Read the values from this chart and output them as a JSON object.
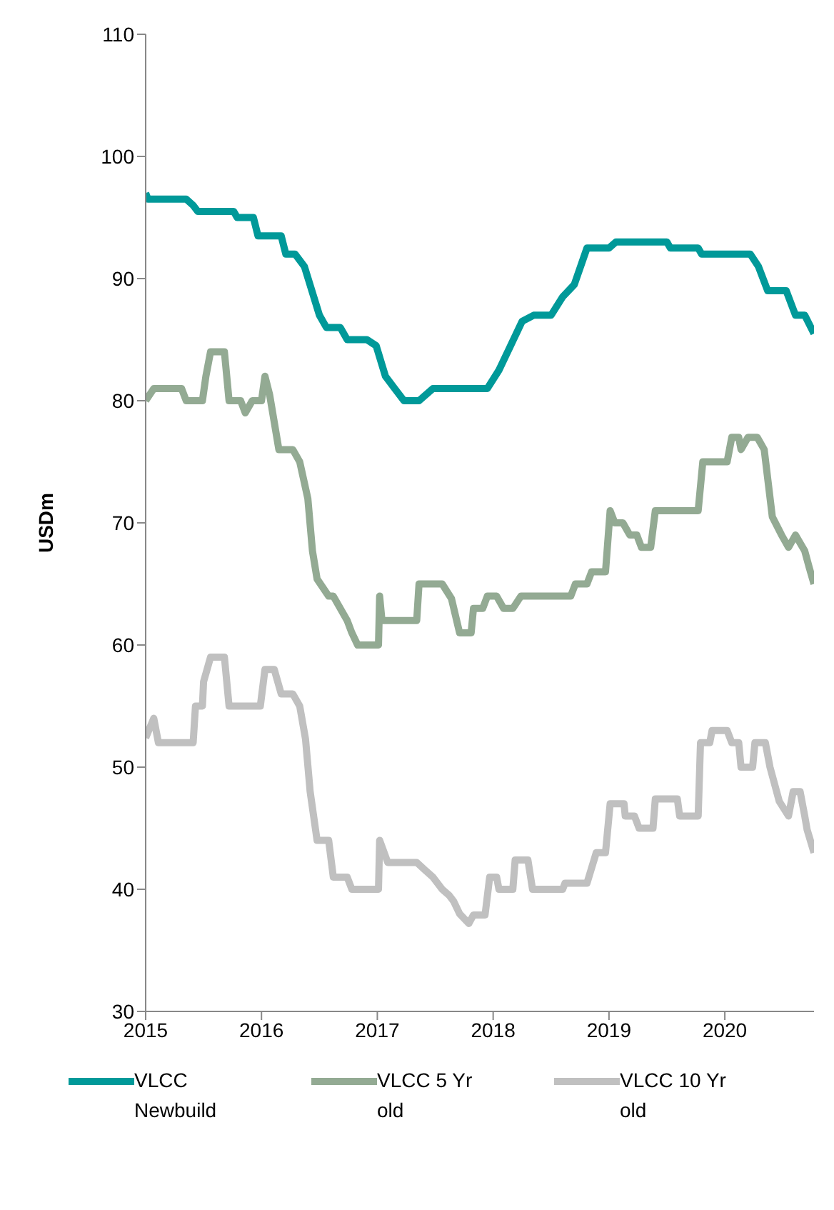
{
  "chart_data": {
    "type": "line",
    "ylabel": "USDm",
    "xlim": [
      2015,
      2020.77
    ],
    "xticks": [
      2015,
      2016,
      2017,
      2018,
      2019,
      2020
    ],
    "ylim": [
      30,
      110
    ],
    "yticks": [
      30,
      40,
      50,
      60,
      70,
      80,
      90,
      100,
      110
    ],
    "legend": "bottom",
    "marker": "none",
    "line_style": "solid",
    "series": [
      {
        "name": "VLCC Newbuild",
        "color": "#009999",
        "x": [
          2015.0,
          2015.02,
          2015.35,
          2015.41,
          2015.45,
          2015.76,
          2015.79,
          2015.93,
          2015.97,
          2016.17,
          2016.21,
          2016.29,
          2016.37,
          2016.5,
          2016.56,
          2016.68,
          2016.74,
          2016.91,
          2016.99,
          2017.07,
          2017.15,
          2017.23,
          2017.36,
          2017.42,
          2017.48,
          2017.95,
          2018.05,
          2018.15,
          2018.25,
          2018.35,
          2018.5,
          2018.6,
          2018.7,
          2018.81,
          2019.0,
          2019.06,
          2019.5,
          2019.53,
          2019.77,
          2019.8,
          2020.22,
          2020.29,
          2020.37,
          2020.53,
          2020.61,
          2020.69,
          2020.77
        ],
        "values": [
          97,
          96.5,
          96.5,
          96,
          95.5,
          95.5,
          95,
          95,
          93.5,
          93.5,
          92,
          92,
          91,
          87,
          86,
          86,
          85,
          85,
          84.5,
          82,
          81,
          80,
          80,
          80.5,
          81,
          81,
          82.5,
          84.5,
          86.5,
          87,
          87,
          88.5,
          89.5,
          92.5,
          92.5,
          93,
          93,
          92.5,
          92.5,
          92,
          92,
          91,
          89,
          89,
          87,
          87,
          85.5
        ]
      },
      {
        "name": "VLCC 5 Yr old",
        "color": "#93aa93",
        "x": [
          2015.0,
          2015.07,
          2015.31,
          2015.35,
          2015.49,
          2015.52,
          2015.56,
          2015.68,
          2015.72,
          2015.82,
          2015.86,
          2015.92,
          2016.0,
          2016.03,
          2016.07,
          2016.15,
          2016.27,
          2016.33,
          2016.4,
          2016.44,
          2016.48,
          2016.58,
          2016.62,
          2016.74,
          2016.78,
          2016.83,
          2017.01,
          2017.02,
          2017.04,
          2017.09,
          2017.34,
          2017.36,
          2017.56,
          2017.64,
          2017.71,
          2017.81,
          2017.83,
          2017.91,
          2017.95,
          2018.03,
          2018.09,
          2018.17,
          2018.24,
          2018.67,
          2018.71,
          2018.81,
          2018.85,
          2018.97,
          2019.01,
          2019.05,
          2019.12,
          2019.18,
          2019.24,
          2019.28,
          2019.36,
          2019.4,
          2019.77,
          2019.81,
          2020.02,
          2020.06,
          2020.12,
          2020.14,
          2020.2,
          2020.28,
          2020.34,
          2020.41,
          2020.49,
          2020.55,
          2020.61,
          2020.69,
          2020.73,
          2020.77
        ],
        "values": [
          80,
          81,
          81,
          80,
          80,
          82,
          84,
          84,
          80,
          80,
          79,
          80,
          80,
          82,
          80.5,
          76,
          76,
          75,
          72,
          67.7,
          65.4,
          64,
          64,
          62,
          61,
          60,
          60,
          64,
          62,
          62,
          62,
          65,
          65,
          63.8,
          61,
          61,
          63,
          63,
          64,
          64,
          63,
          63,
          64,
          64,
          65,
          65,
          66,
          66,
          71,
          70,
          70,
          69,
          69,
          68,
          68,
          71,
          71,
          75,
          75,
          77,
          77,
          76,
          77,
          77,
          76,
          70.5,
          69,
          68,
          69,
          67.7,
          66.3,
          65
        ]
      },
      {
        "name": "VLCC 10 Yr old",
        "color": "#c0c0c0",
        "x": [
          2015.0,
          2015.07,
          2015.11,
          2015.41,
          2015.43,
          2015.49,
          2015.5,
          2015.56,
          2015.68,
          2015.72,
          2015.99,
          2016.03,
          2016.11,
          2016.17,
          2016.27,
          2016.33,
          2016.38,
          2016.42,
          2016.48,
          2016.58,
          2016.62,
          2016.74,
          2016.78,
          2017.01,
          2017.02,
          2017.09,
          2017.34,
          2017.42,
          2017.48,
          2017.56,
          2017.62,
          2017.66,
          2017.71,
          2017.79,
          2017.83,
          2017.93,
          2017.97,
          2018.03,
          2018.05,
          2018.17,
          2018.19,
          2018.3,
          2018.34,
          2018.6,
          2018.62,
          2018.81,
          2018.89,
          2018.97,
          2019.01,
          2019.13,
          2019.14,
          2019.22,
          2019.26,
          2019.38,
          2019.4,
          2019.59,
          2019.61,
          2019.77,
          2019.79,
          2019.87,
          2019.89,
          2020.02,
          2020.06,
          2020.12,
          2020.14,
          2020.24,
          2020.26,
          2020.35,
          2020.39,
          2020.47,
          2020.55,
          2020.59,
          2020.65,
          2020.69,
          2020.71,
          2020.77
        ],
        "values": [
          52.4,
          54,
          52,
          52,
          55,
          55,
          57,
          59,
          59,
          55,
          55,
          58,
          58,
          56,
          56,
          55,
          52.3,
          48,
          44,
          44,
          41,
          41,
          40,
          40,
          44,
          42.2,
          42.2,
          41.5,
          41,
          40,
          39.5,
          39,
          38,
          37.2,
          37.9,
          37.9,
          41,
          41,
          40,
          40,
          42.4,
          42.4,
          40,
          40,
          40.5,
          40.5,
          43,
          43,
          47,
          47,
          46,
          46,
          45,
          45,
          47.4,
          47.4,
          46,
          46,
          52,
          52,
          53,
          53,
          52,
          52,
          50,
          50,
          52,
          52,
          50,
          47.2,
          46,
          48,
          48,
          46,
          44.9,
          43
        ]
      }
    ]
  }
}
